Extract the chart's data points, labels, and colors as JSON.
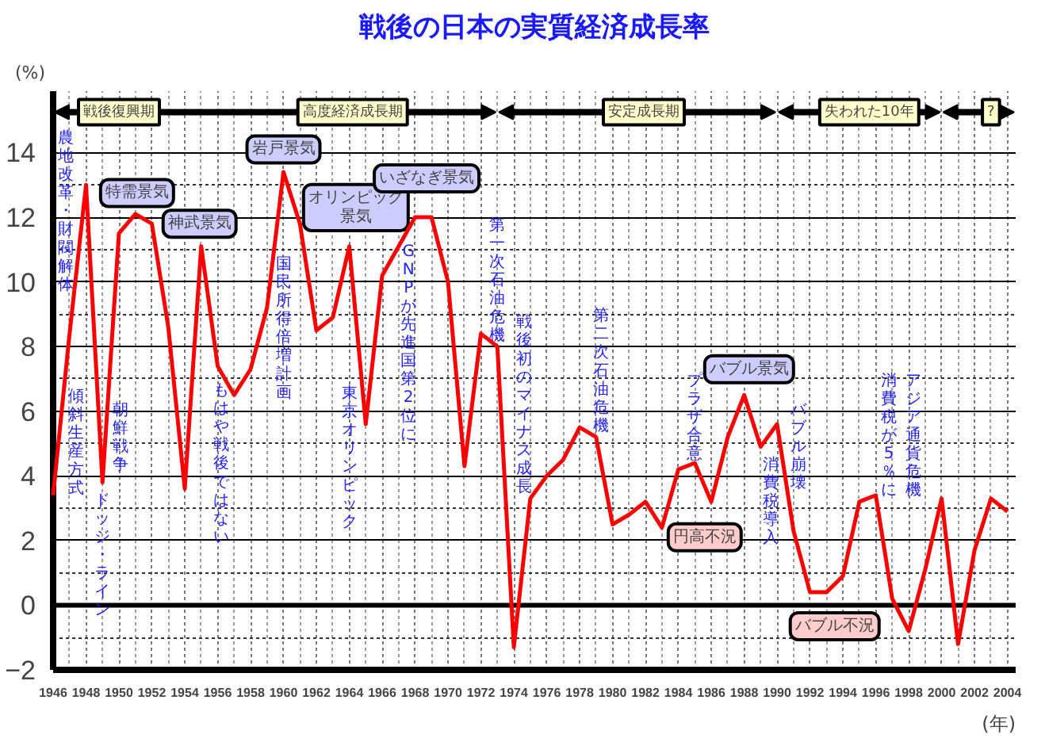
{
  "chart_data": {
    "type": "line",
    "title": "戦後の日本の実質経済成長率",
    "xlabel": "(年)",
    "ylabel": "(%)",
    "x": [
      1946,
      1947,
      1948,
      1949,
      1950,
      1951,
      1952,
      1953,
      1954,
      1955,
      1956,
      1957,
      1958,
      1959,
      1960,
      1961,
      1962,
      1963,
      1964,
      1965,
      1966,
      1967,
      1968,
      1969,
      1970,
      1971,
      1972,
      1973,
      1974,
      1975,
      1976,
      1977,
      1978,
      1979,
      1980,
      1981,
      1982,
      1983,
      1984,
      1985,
      1986,
      1987,
      1988,
      1989,
      1990,
      1991,
      1992,
      1993,
      1994,
      1995,
      1996,
      1997,
      1998,
      1999,
      2000,
      2001,
      2002,
      2003,
      2004
    ],
    "series": [
      {
        "color": "#ff0000",
        "values": [
          3.4,
          8.4,
          13.0,
          3.8,
          11.5,
          12.1,
          11.8,
          8.6,
          3.6,
          11.1,
          7.4,
          6.5,
          7.3,
          9.2,
          13.4,
          11.8,
          8.5,
          8.9,
          11.1,
          5.6,
          10.2,
          11.1,
          12.0,
          12.0,
          10.0,
          4.3,
          8.4,
          8.0,
          -1.3,
          3.3,
          4.0,
          4.5,
          5.5,
          5.2,
          2.5,
          2.8,
          3.2,
          2.4,
          4.2,
          4.4,
          3.2,
          5.2,
          6.5,
          4.9,
          5.6,
          2.3,
          0.4,
          0.4,
          0.9,
          3.2,
          3.4,
          0.2,
          -0.8,
          1.1,
          3.3,
          -1.2,
          1.7,
          3.3,
          2.9
        ]
      }
    ],
    "xlim": [
      1946,
      2004.5
    ],
    "xticks": [
      1946,
      1948,
      1950,
      1952,
      1954,
      1956,
      1958,
      1960,
      1962,
      1964,
      1966,
      1968,
      1970,
      1972,
      1974,
      1976,
      1978,
      1980,
      1982,
      1984,
      1986,
      1988,
      1990,
      1992,
      1994,
      1996,
      1998,
      2000,
      2002,
      2004
    ],
    "ylim": [
      -2,
      15.9
    ],
    "yticks": [
      -2,
      0,
      2,
      4,
      6,
      8,
      10,
      12,
      14
    ],
    "grid": true,
    "line_style": "solid",
    "ref_lines": [
      {
        "axis": "y",
        "value": 0,
        "color": "#000000"
      }
    ],
    "annotations": [
      "戦後復興期",
      "高度経済成長期",
      "安定成長期",
      "失われた10年",
      "?",
      "農地改革・財閥解体",
      "傾斜生産方式",
      "ドッジ・ライン",
      "朝鮮戦争",
      "もはや戦後ではない",
      "国民所得倍増計画",
      "東京オリンピック",
      "GNPが先進国第2位に",
      "第一次石油危機",
      "戦後初のマイナス成長",
      "第二次石油危機",
      "プラザ合意",
      "消費税導入",
      "バブル崩壊",
      "消費税が5％に",
      "アジア通貨危機",
      "特需景気",
      "神武景気",
      "岩戸景気",
      "オリンピック景気",
      "いざなぎ景気",
      "バブル景気",
      "円高不況",
      "バブル不況"
    ]
  }
}
